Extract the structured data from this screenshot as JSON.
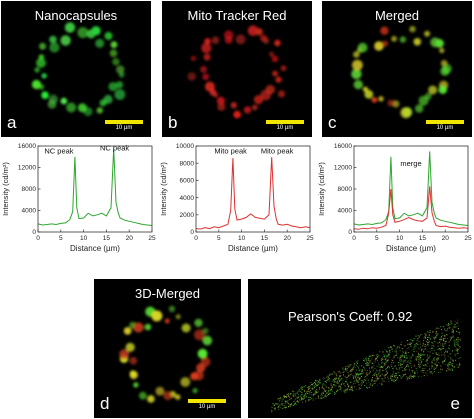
{
  "colors": {
    "green": "#2ea62e",
    "red": "#e03030",
    "scalebar": "#f2e600"
  },
  "panels": {
    "a": {
      "title": "Nanocapsules",
      "label": "a",
      "scale": "10 µm"
    },
    "b": {
      "title": "Mito Tracker Red",
      "label": "b",
      "scale": "10 µm"
    },
    "c": {
      "title": "Merged",
      "label": "c",
      "scale": "10 µm"
    },
    "d": {
      "title": "3D-Merged",
      "label": "d",
      "scale": "10 µm"
    },
    "e": {
      "label": "e",
      "pearson": "Pearson's Coeff:  0.92"
    }
  },
  "chart_data": [
    {
      "type": "line",
      "xlabel": "Distance (µm)",
      "ylabel": "Intensity (cd/m²)",
      "xlim": [
        0,
        25
      ],
      "ylim": [
        0,
        16000
      ],
      "xticks": [
        0,
        5,
        10,
        15,
        20,
        25
      ],
      "yticks": [
        0,
        4000,
        8000,
        12000,
        16000
      ],
      "annotations": [
        "NC peak",
        "NC peak"
      ],
      "series": [
        {
          "color": "green",
          "x": [
            0,
            1,
            2,
            3,
            4,
            5,
            6,
            7,
            7.6,
            8.1,
            8.5,
            9.0,
            10,
            11,
            12,
            13,
            14,
            15,
            16.0,
            16.6,
            17.1,
            17.6,
            18,
            19,
            20,
            21,
            22,
            23,
            24,
            25
          ],
          "y": [
            1500,
            1300,
            1400,
            1500,
            1400,
            1600,
            1700,
            2300,
            3800,
            14000,
            4500,
            2500,
            2600,
            3500,
            3000,
            3200,
            3500,
            3000,
            4500,
            15500,
            5500,
            3500,
            2600,
            2200,
            2000,
            1800,
            1600,
            1400,
            1300,
            1200
          ]
        }
      ]
    },
    {
      "type": "line",
      "xlabel": "Distance (µm)",
      "ylabel": "Intensity (cd/m²)",
      "xlim": [
        0,
        25
      ],
      "ylim": [
        0,
        10000
      ],
      "xticks": [
        0,
        5,
        10,
        15,
        20,
        25
      ],
      "yticks": [
        0,
        2000,
        4000,
        6000,
        8000,
        10000
      ],
      "annotations": [
        "Mito peak",
        "Mito peak"
      ],
      "series": [
        {
          "color": "red",
          "x": [
            0,
            1,
            2,
            3,
            4,
            5,
            6,
            7,
            7.6,
            8.1,
            8.5,
            9.0,
            10,
            11,
            12,
            13,
            14,
            15,
            16.0,
            16.6,
            17.1,
            17.6,
            18,
            19,
            20,
            21,
            22,
            23,
            24,
            25
          ],
          "y": [
            400,
            350,
            500,
            400,
            600,
            500,
            700,
            900,
            2500,
            8600,
            2700,
            1400,
            1500,
            1700,
            2100,
            1700,
            1600,
            1500,
            2000,
            8700,
            3000,
            1500,
            900,
            800,
            900,
            700,
            600,
            500,
            600,
            500
          ]
        }
      ]
    },
    {
      "type": "line",
      "xlabel": "Distance (µm)",
      "ylabel": "Intensity (cd/m²)",
      "xlim": [
        0,
        25
      ],
      "ylim": [
        0,
        16000
      ],
      "xticks": [
        0,
        5,
        10,
        15,
        20,
        25
      ],
      "yticks": [
        0,
        4000,
        8000,
        12000,
        16000
      ],
      "annotations": [
        "merge"
      ],
      "series": [
        {
          "color": "green",
          "x": [
            0,
            1,
            2,
            3,
            4,
            5,
            6,
            7,
            7.6,
            8.1,
            8.5,
            9.0,
            10,
            11,
            12,
            13,
            14,
            15,
            16.0,
            16.6,
            17.1,
            17.6,
            18,
            19,
            20,
            21,
            22,
            23,
            24,
            25
          ],
          "y": [
            1500,
            1300,
            1400,
            1500,
            1400,
            1600,
            1700,
            2300,
            3800,
            14000,
            4500,
            2500,
            2600,
            3500,
            3000,
            3200,
            3500,
            3000,
            4500,
            15000,
            5500,
            3500,
            2600,
            2200,
            2000,
            1800,
            1600,
            1400,
            1300,
            1200
          ]
        },
        {
          "color": "red",
          "x": [
            0,
            1,
            2,
            3,
            4,
            5,
            6,
            7,
            7.6,
            8.1,
            8.5,
            9.0,
            10,
            11,
            12,
            13,
            14,
            15,
            16.0,
            16.6,
            17.1,
            17.6,
            18,
            19,
            20,
            21,
            22,
            23,
            24,
            25
          ],
          "y": [
            600,
            500,
            700,
            600,
            800,
            700,
            900,
            1200,
            3500,
            8000,
            3200,
            1800,
            2000,
            2300,
            2700,
            2300,
            2100,
            2000,
            2600,
            8500,
            3600,
            2000,
            1200,
            1000,
            1100,
            900,
            800,
            700,
            800,
            700
          ]
        }
      ]
    }
  ]
}
